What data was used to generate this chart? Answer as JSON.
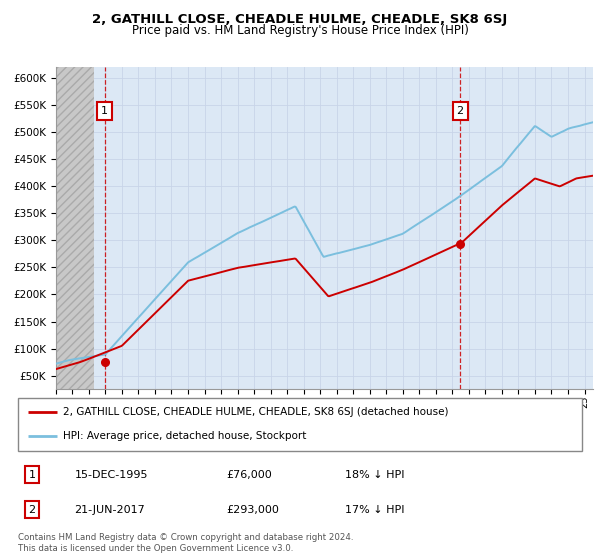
{
  "title": "2, GATHILL CLOSE, CHEADLE HULME, CHEADLE, SK8 6SJ",
  "subtitle": "Price paid vs. HM Land Registry's House Price Index (HPI)",
  "ylabel_ticks": [
    "£50K",
    "£100K",
    "£150K",
    "£200K",
    "£250K",
    "£300K",
    "£350K",
    "£400K",
    "£450K",
    "£500K",
    "£550K",
    "£600K"
  ],
  "ytick_vals": [
    50000,
    100000,
    150000,
    200000,
    250000,
    300000,
    350000,
    400000,
    450000,
    500000,
    550000,
    600000
  ],
  "ylim": [
    25000,
    620000
  ],
  "xlim_start": 1993.0,
  "xlim_end": 2025.5,
  "sale1_x": 1995.958,
  "sale1_y": 76000,
  "sale1_label": "1",
  "sale1_date": "15-DEC-1995",
  "sale1_price": "£76,000",
  "sale1_hpi": "18% ↓ HPI",
  "sale2_x": 2017.472,
  "sale2_y": 293000,
  "sale2_label": "2",
  "sale2_date": "21-JUN-2017",
  "sale2_price": "£293,000",
  "sale2_hpi": "17% ↓ HPI",
  "legend_line1": "2, GATHILL CLOSE, CHEADLE HULME, CHEADLE, SK8 6SJ (detached house)",
  "legend_line2": "HPI: Average price, detached house, Stockport",
  "footer": "Contains HM Land Registry data © Crown copyright and database right 2024.\nThis data is licensed under the Open Government Licence v3.0.",
  "hpi_color": "#7bbfde",
  "price_color": "#cc0000",
  "grid_color": "#c8d4e8",
  "plot_bg": "#dce8f5",
  "hatch_color": "#c8c8c8"
}
